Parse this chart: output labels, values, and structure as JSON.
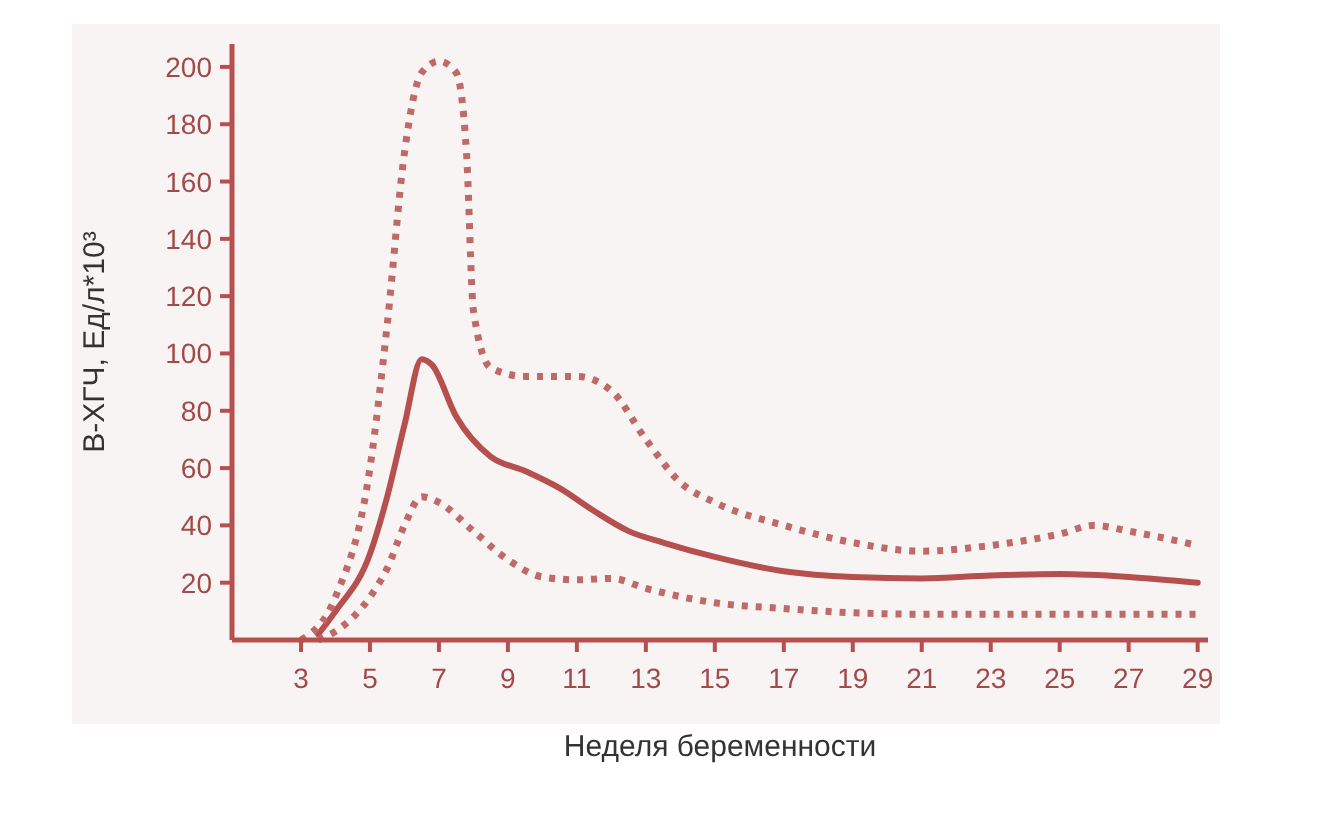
{
  "chart_data": {
    "type": "line",
    "xlabel": "Неделя беременности",
    "ylabel": "B-ХГЧ, Ед/л*10³",
    "xlim": [
      1,
      29.3
    ],
    "ylim": [
      0,
      208
    ],
    "xticks": [
      3,
      5,
      7,
      9,
      11,
      13,
      15,
      17,
      19,
      21,
      23,
      25,
      27,
      29
    ],
    "yticks": [
      20,
      40,
      60,
      80,
      100,
      120,
      140,
      160,
      180,
      200
    ],
    "grid": false,
    "series": [
      {
        "color": "#b5504e",
        "line_style": "solid",
        "x": [
          3.5,
          4,
          5,
          5.5,
          6,
          6.5,
          6.8,
          7.5,
          8.5,
          9.5,
          10.5,
          11.5,
          12.5,
          13.5,
          15,
          17,
          19,
          21,
          23,
          25,
          27,
          29
        ],
        "values": [
          2,
          10,
          30,
          50,
          75,
          98,
          96,
          78,
          64,
          59,
          53,
          45,
          38,
          34,
          29,
          24,
          22,
          21.5,
          22.5,
          23,
          22,
          20
        ]
      },
      {
        "color": "#c06a68",
        "line_style": "dotted",
        "x": [
          3,
          4,
          5,
          5.5,
          6,
          6.5,
          7,
          7.5,
          7.8,
          8,
          8.5,
          9.5,
          11,
          12,
          13,
          14,
          15,
          17,
          19,
          21,
          23,
          25,
          26,
          27,
          29
        ],
        "values": [
          0,
          15,
          60,
          110,
          170,
          198,
          202,
          198,
          170,
          115,
          95,
          92,
          92,
          87,
          70,
          55,
          48,
          40,
          34,
          31,
          33,
          37,
          40,
          38,
          33
        ]
      },
      {
        "color": "#c06a68",
        "line_style": "dotted",
        "x": [
          3.5,
          4,
          5,
          5.5,
          6,
          6.5,
          7,
          8,
          9,
          10,
          11,
          12,
          13,
          15,
          17,
          19,
          21,
          25,
          29
        ],
        "values": [
          0,
          3,
          15,
          25,
          40,
          50,
          48,
          38,
          28,
          22,
          21,
          21.5,
          18,
          13,
          11,
          9.5,
          9,
          9,
          9
        ]
      }
    ]
  }
}
